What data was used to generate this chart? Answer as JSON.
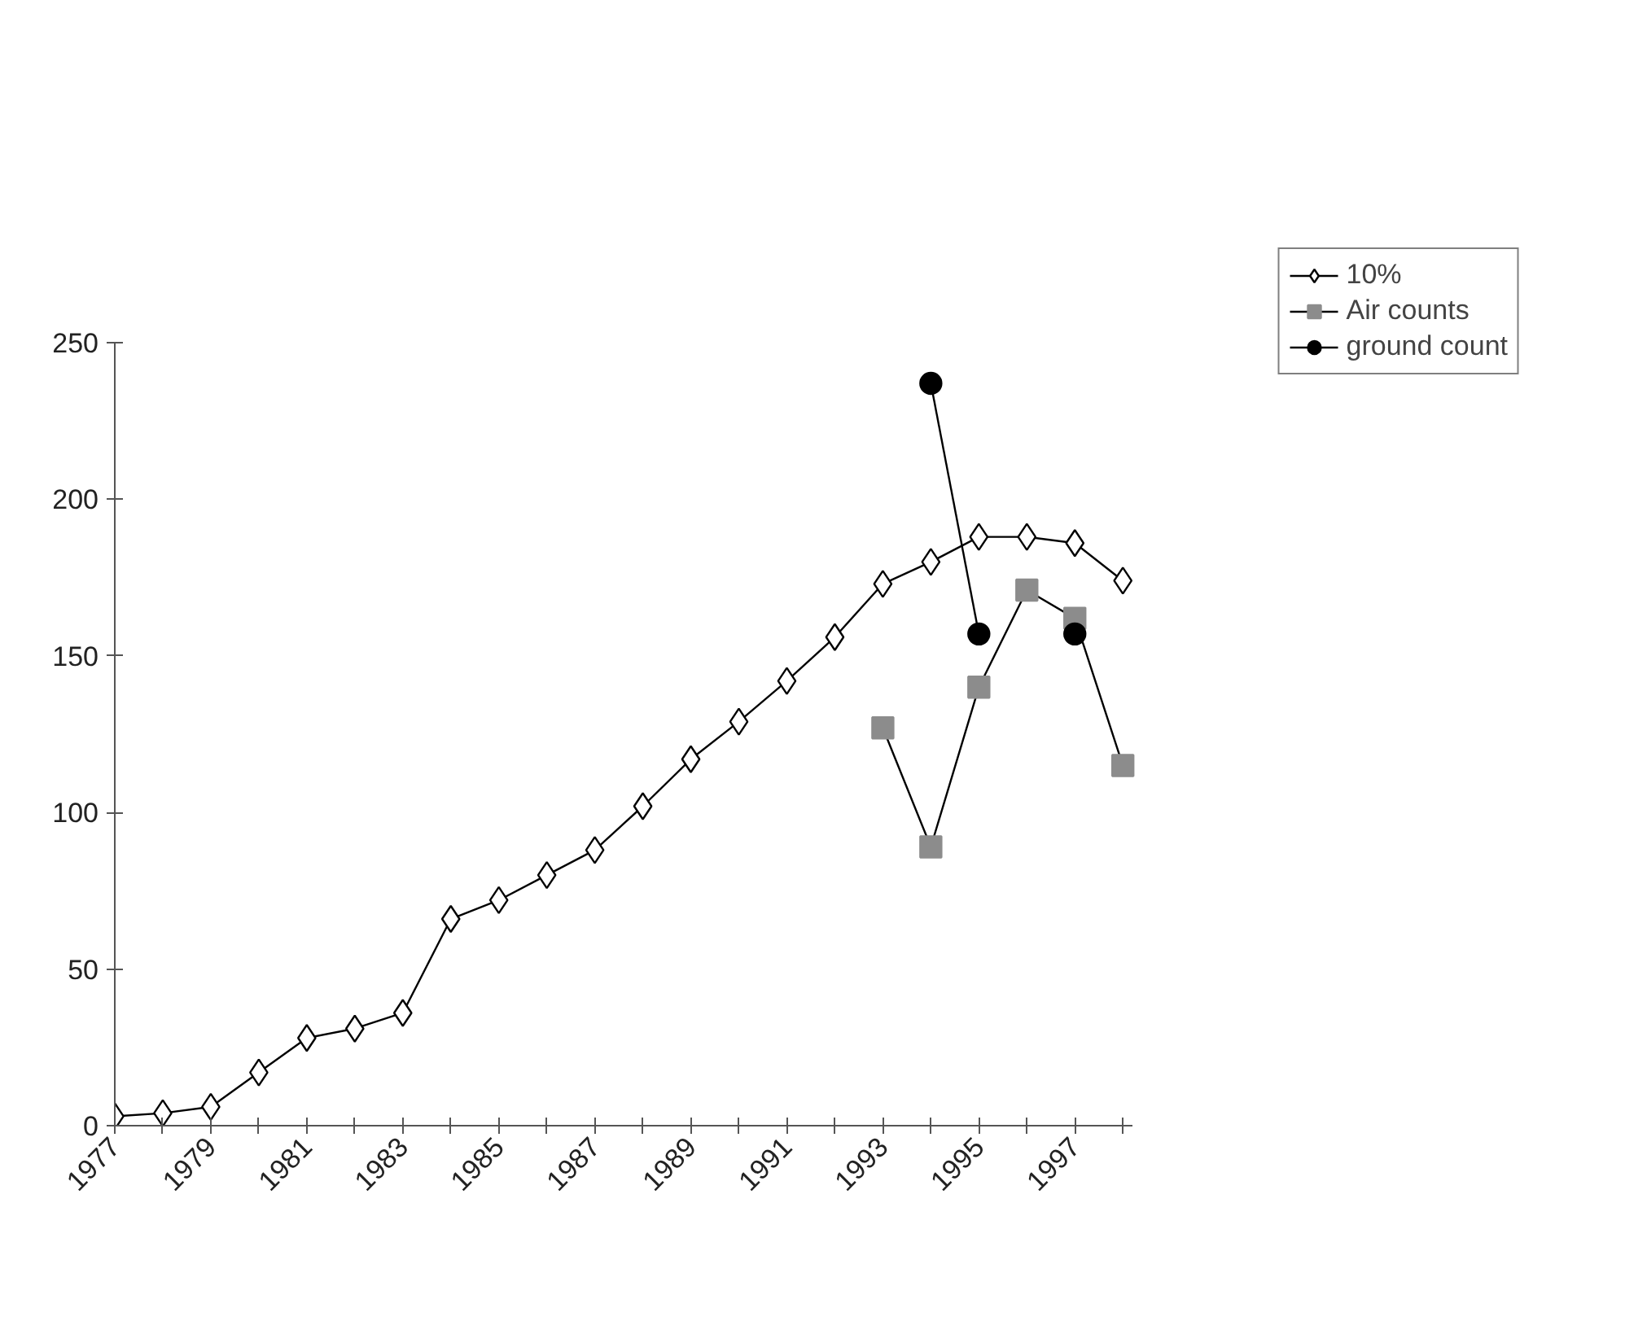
{
  "chart_data": {
    "type": "line",
    "categories": [
      "1977",
      null,
      "1979",
      null,
      "1981",
      null,
      "1983",
      null,
      "1985",
      null,
      "1987",
      null,
      "1989",
      null,
      "1991",
      null,
      "1993",
      null,
      "1995",
      null,
      "1997",
      null
    ],
    "series": [
      {
        "name": "10%",
        "color": "#ffffff",
        "marker": "diamond",
        "values": [
          3,
          4,
          6,
          17,
          28,
          31,
          36,
          66,
          72,
          80,
          88,
          102,
          117,
          129,
          142,
          156,
          173,
          180,
          188,
          188,
          186,
          174
        ]
      },
      {
        "name": "Air counts",
        "color": "#8c8c8c",
        "marker": "square",
        "values": [
          null,
          null,
          null,
          null,
          null,
          null,
          null,
          null,
          null,
          null,
          null,
          null,
          null,
          null,
          null,
          null,
          127,
          89,
          140,
          171,
          162,
          115
        ]
      },
      {
        "name": "ground count",
        "color": "#000000",
        "marker": "circle",
        "values": [
          null,
          null,
          null,
          null,
          null,
          null,
          null,
          null,
          null,
          null,
          null,
          null,
          null,
          null,
          null,
          null,
          null,
          237,
          157,
          null,
          157,
          null
        ]
      }
    ],
    "ylim": [
      0,
      250
    ],
    "yticks": [
      0,
      50,
      100,
      150,
      200,
      250
    ],
    "grid": false,
    "legend": "top right",
    "line_style": "solid"
  }
}
